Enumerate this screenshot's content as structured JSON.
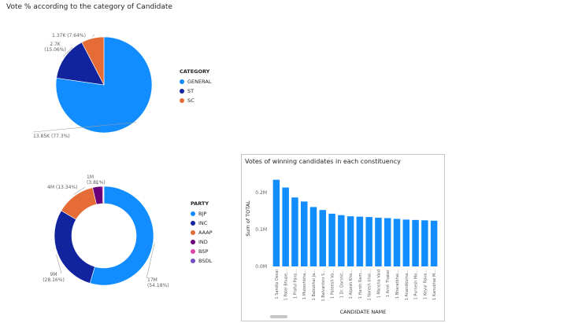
{
  "chart_data": [
    {
      "type": "pie",
      "title": "Vote % according to the category of Candidate",
      "legend_title": "CATEGORY",
      "legend_position": "right",
      "slices": [
        {
          "name": "GENERAL",
          "value": 13.85,
          "label": "13.85K (77.3%)",
          "color": "#118DFF"
        },
        {
          "name": "ST",
          "value": 2.7,
          "label": "2.7K (15.06%)",
          "color": "#12239E"
        },
        {
          "name": "SC",
          "value": 1.37,
          "label": "1.37K (7.64%)",
          "color": "#E66C37"
        }
      ]
    },
    {
      "type": "pie",
      "donut": true,
      "title": "",
      "legend_title": "PARTY",
      "legend_position": "right",
      "legend": [
        {
          "name": "BJP",
          "color": "#118DFF"
        },
        {
          "name": "INC",
          "color": "#12239E"
        },
        {
          "name": "AAAP",
          "color": "#E66C37"
        },
        {
          "name": "IND",
          "color": "#6B007B"
        },
        {
          "name": "BSP",
          "color": "#E044A7"
        },
        {
          "name": "BSDL",
          "color": "#744EC2"
        }
      ],
      "slices": [
        {
          "name": "BJP",
          "value": 17,
          "label": "17M (54.18%)",
          "color": "#118DFF"
        },
        {
          "name": "INC",
          "value": 9,
          "label": "9M (28.16%)",
          "color": "#12239E"
        },
        {
          "name": "AAAP",
          "value": 4,
          "label": "4M (13.34%)",
          "color": "#E66C37"
        },
        {
          "name": "IND",
          "value": 1,
          "label": "1M (3.81%)",
          "color": "#6B007B"
        },
        {
          "name": "BSP",
          "value": 0.1,
          "label": "",
          "color": "#E044A7"
        },
        {
          "name": "BSDL",
          "value": 0.05,
          "label": "",
          "color": "#744EC2"
        }
      ]
    },
    {
      "type": "bar",
      "title": "Votes of winning candidates in each constituency",
      "xlabel": "CANDIDATE NAME",
      "ylabel": "Sum of TOTAL",
      "ylim": [
        0,
        0.26
      ],
      "yticks": [
        "0.0M",
        "0.1M",
        "0.2M"
      ],
      "ytick_values": [
        0,
        0.1,
        0.2
      ],
      "grid": false,
      "color": "#118DFF",
      "categories": [
        "1 Sandip Desai",
        "1 Patel Bhupe...",
        "1 Praful Pans...",
        "1 Mukeshbha...",
        "1 Babubhai Ja...",
        "1 Balvantsin S...",
        "1 Pateesh Va...",
        "1 Dr. Darshit...",
        "1 Alpesh Kho...",
        "1 Harsh Ram...",
        "1 Naresh bhai...",
        "1 Mansha Vaid",
        "1 Amit Thaker",
        "1 Bharatbhai...",
        "1 Anandkuma...",
        "1 Purnesh Mo...",
        "1 Keyur Rava...",
        "1 Kanubhai M..."
      ],
      "values": [
        0.235,
        0.214,
        0.187,
        0.176,
        0.161,
        0.153,
        0.143,
        0.139,
        0.136,
        0.135,
        0.134,
        0.132,
        0.131,
        0.129,
        0.127,
        0.126,
        0.125,
        0.124
      ]
    }
  ]
}
